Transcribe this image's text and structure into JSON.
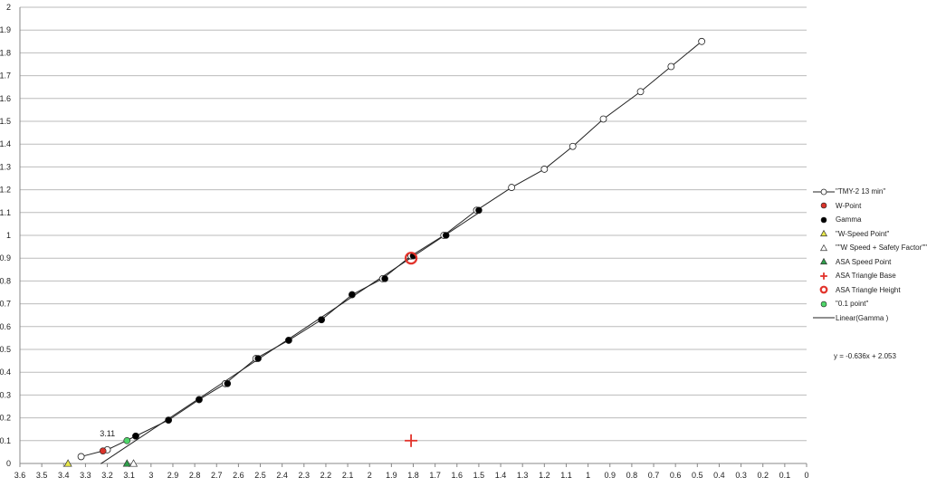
{
  "chart_data": {
    "type": "scatter",
    "title": "",
    "xlabel": "",
    "ylabel": "",
    "xlim": [
      3.6,
      0
    ],
    "x_reversed": true,
    "ylim": [
      0,
      2
    ],
    "grid": "horizontal",
    "legend_position": "right",
    "x_ticks": [
      "3.6",
      "3.5",
      "3.4",
      "3.3",
      "3.2",
      "3.1",
      "3",
      "2.9",
      "2.8",
      "2.7",
      "2.6",
      "2.5",
      "2.4",
      "2.3",
      "2.2",
      "2.1",
      "2",
      "1.9",
      "1.8",
      "1.7",
      "1.6",
      "1.5",
      "1.4",
      "1.3",
      "1.2",
      "1.1",
      "1",
      "0.9",
      "0.8",
      "0.7",
      "0.6",
      "0.5",
      "0.4",
      "0.3",
      "0.2",
      "0.1",
      "0"
    ],
    "y_ticks": [
      "0",
      "0.1",
      "0.2",
      "0.3",
      "0.4",
      "0.5",
      "0.6",
      "0.7",
      "0.8",
      "0.9",
      "1",
      "1.1",
      "1.2",
      "1.3",
      "1.4",
      "1.5",
      "1.6",
      "1.7",
      "1.8",
      "1.9",
      "2"
    ],
    "series": [
      {
        "name": "\"TMY-2 13 min\"",
        "marker": "open-circle",
        "line": true,
        "color": "#222222",
        "x": [
          3.32,
          3.2,
          3.07,
          2.92,
          2.78,
          2.66,
          2.52,
          2.37,
          2.22,
          2.08,
          1.94,
          1.81,
          1.66,
          1.51,
          1.35,
          1.2,
          1.07,
          0.93,
          0.76,
          0.62,
          0.48
        ],
        "y": [
          0.03,
          0.06,
          0.12,
          0.19,
          0.28,
          0.35,
          0.46,
          0.54,
          0.63,
          0.74,
          0.81,
          0.91,
          1.0,
          1.11,
          1.21,
          1.29,
          1.39,
          1.51,
          1.63,
          1.74,
          1.85
        ]
      },
      {
        "name": "W-Point",
        "marker": "filled-circle",
        "color": "#d9342b",
        "x": [
          3.22
        ],
        "y": [
          0.055
        ]
      },
      {
        "name": "Gamma",
        "marker": "filled-circle",
        "color": "#000000",
        "x": [
          3.07,
          2.92,
          2.78,
          2.65,
          2.51,
          2.37,
          2.22,
          2.08,
          1.93,
          1.8,
          1.65,
          1.5
        ],
        "y": [
          0.12,
          0.19,
          0.28,
          0.35,
          0.46,
          0.54,
          0.63,
          0.74,
          0.81,
          0.91,
          1.0,
          1.11
        ]
      },
      {
        "name": "\"W-Speed Point\"",
        "marker": "triangle",
        "color": "#e8e84a",
        "x": [
          3.38
        ],
        "y": [
          0
        ]
      },
      {
        "name": "\"\"W Speed + Safety Factor\"\"",
        "marker": "open-triangle",
        "color": "#ffffff",
        "x": [
          3.08
        ],
        "y": [
          0
        ]
      },
      {
        "name": "ASA Speed Point",
        "marker": "triangle",
        "color": "#2e9e4a",
        "x": [
          3.11
        ],
        "y": [
          0
        ]
      },
      {
        "name": "ASA Triangle Base",
        "marker": "plus",
        "color": "#e2332b",
        "x": [
          1.81
        ],
        "y": [
          0.1
        ]
      },
      {
        "name": "ASA Triangle Height",
        "marker": "ring",
        "color": "#e2332b",
        "x": [
          1.81
        ],
        "y": [
          0.9
        ]
      },
      {
        "name": "\"0.1 point\"",
        "marker": "filled-circle",
        "color": "#4fd66a",
        "x": [
          3.11
        ],
        "y": [
          0.1
        ],
        "label": "3.11"
      },
      {
        "name": "Linear(Gamma )",
        "marker": "line",
        "color": "#222222",
        "slope": -0.636,
        "intercept": 2.053,
        "x_range": [
          3.23,
          1.5
        ]
      }
    ],
    "trendline_equation": "y = -0.636x + 2.053"
  }
}
